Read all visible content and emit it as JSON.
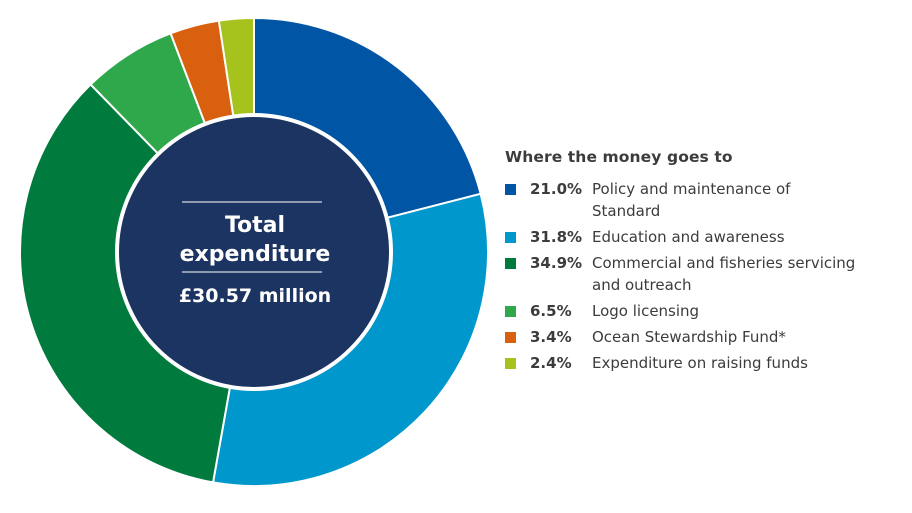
{
  "chart_data": {
    "type": "pie",
    "donut": true,
    "legend_title": "Where the money goes to",
    "center": {
      "line1": "Total",
      "line2": "expenditure",
      "amount": "£30.57 million"
    },
    "slices": [
      {
        "label": "Policy and maintenance of Standard",
        "value": 21.0,
        "value_label": "21.0%",
        "color": "#0055a5"
      },
      {
        "label": "Education and awareness",
        "value": 31.8,
        "value_label": "31.8%",
        "color": "#0097cc"
      },
      {
        "label": "Commercial and fisheries servicing and outreach",
        "value": 34.9,
        "value_label": "34.9%",
        "color": "#007a3d"
      },
      {
        "label": "Logo licensing",
        "value": 6.5,
        "value_label": "6.5%",
        "color": "#2ea84a"
      },
      {
        "label": "Ocean Stewardship Fund*",
        "value": 3.4,
        "value_label": "3.4%",
        "color": "#d9600f"
      },
      {
        "label": "Expenditure on raising funds",
        "value": 2.4,
        "value_label": "2.4%",
        "color": "#a6c21c"
      }
    ],
    "inner_color": "#1c3461"
  }
}
